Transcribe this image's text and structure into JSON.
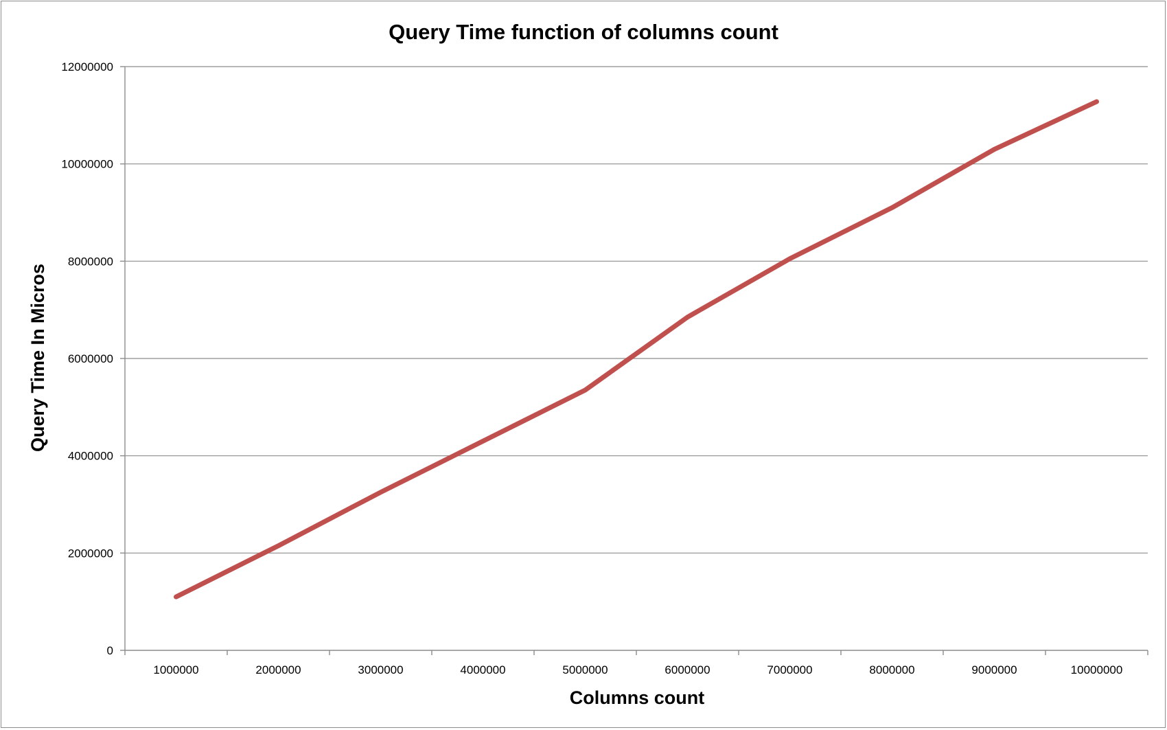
{
  "chart_data": {
    "type": "line",
    "title": "Query Time function of columns count",
    "xlabel": "Columns count",
    "ylabel": "Query Time In Micros",
    "categories": [
      "1000000",
      "2000000",
      "3000000",
      "4000000",
      "5000000",
      "6000000",
      "7000000",
      "8000000",
      "9000000",
      "10000000"
    ],
    "series": [
      {
        "values": [
          1100000,
          2150000,
          3250000,
          4300000,
          5350000,
          6850000,
          8050000,
          9100000,
          10300000,
          11280000
        ]
      }
    ],
    "y_ticks": [
      "0",
      "2000000",
      "4000000",
      "6000000",
      "8000000",
      "10000000",
      "12000000"
    ],
    "ylim": [
      0,
      12000000
    ],
    "grid": true,
    "legend": "none",
    "colors": {
      "series": "#c0504d",
      "grid": "#8c8c8c"
    }
  }
}
